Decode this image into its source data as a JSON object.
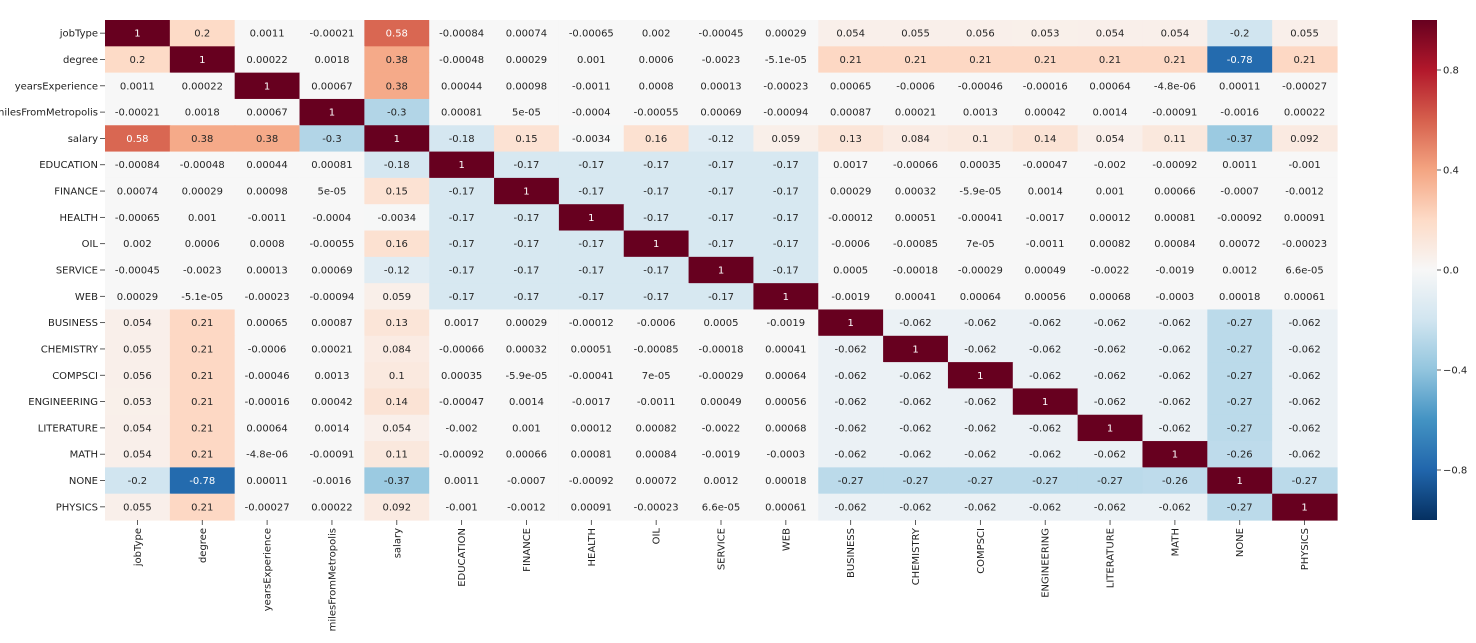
{
  "chart_data": {
    "type": "heatmap",
    "title": "",
    "xlabel": "",
    "ylabel": "",
    "labels": [
      "jobType",
      "degree",
      "yearsExperience",
      "milesFromMetropolis",
      "salary",
      "EDUCATION",
      "FINANCE",
      "HEALTH",
      "OIL",
      "SERVICE",
      "WEB",
      "BUSINESS",
      "CHEMISTRY",
      "COMPSCI",
      "ENGINEERING",
      "LITERATURE",
      "MATH",
      "NONE",
      "PHYSICS"
    ],
    "colormap": "RdBu_r",
    "vmin": -1,
    "vmax": 1,
    "colorbar": {
      "ticks": [
        0.8,
        0.4,
        0.0,
        -0.4,
        -0.8
      ],
      "tick_labels": [
        "0.8",
        "0.4",
        "0.0",
        "−0.4",
        "−0.8"
      ]
    },
    "value_labels": [
      [
        "1",
        "0.2",
        "0.0011",
        "-0.00021",
        "0.58",
        "-0.00084",
        "0.00074",
        "-0.00065",
        "0.002",
        "-0.00045",
        "0.00029",
        "0.054",
        "0.055",
        "0.056",
        "0.053",
        "0.054",
        "0.054",
        "-0.2",
        "0.055"
      ],
      [
        "0.2",
        "1",
        "0.00022",
        "0.0018",
        "0.38",
        "-0.00048",
        "0.00029",
        "0.001",
        "0.0006",
        "-0.0023",
        "-5.1e-05",
        "0.21",
        "0.21",
        "0.21",
        "0.21",
        "0.21",
        "0.21",
        "-0.78",
        "0.21"
      ],
      [
        "0.0011",
        "0.00022",
        "1",
        "0.00067",
        "0.38",
        "0.00044",
        "0.00098",
        "-0.0011",
        "0.0008",
        "0.00013",
        "-0.00023",
        "0.00065",
        "-0.0006",
        "-0.00046",
        "-0.00016",
        "0.00064",
        "-4.8e-06",
        "0.00011",
        "-0.00027"
      ],
      [
        "-0.00021",
        "0.0018",
        "0.00067",
        "1",
        "-0.3",
        "0.00081",
        "5e-05",
        "-0.0004",
        "-0.00055",
        "0.00069",
        "-0.00094",
        "0.00087",
        "0.00021",
        "0.0013",
        "0.00042",
        "0.0014",
        "-0.00091",
        "-0.0016",
        "0.00022"
      ],
      [
        "0.58",
        "0.38",
        "0.38",
        "-0.3",
        "1",
        "-0.18",
        "0.15",
        "-0.0034",
        "0.16",
        "-0.12",
        "0.059",
        "0.13",
        "0.084",
        "0.1",
        "0.14",
        "0.054",
        "0.11",
        "-0.37",
        "0.092"
      ],
      [
        "-0.00084",
        "-0.00048",
        "0.00044",
        "0.00081",
        "-0.18",
        "1",
        "-0.17",
        "-0.17",
        "-0.17",
        "-0.17",
        "-0.17",
        "0.0017",
        "-0.00066",
        "0.00035",
        "-0.00047",
        "-0.002",
        "-0.00092",
        "0.0011",
        "-0.001"
      ],
      [
        "0.00074",
        "0.00029",
        "0.00098",
        "5e-05",
        "0.15",
        "-0.17",
        "1",
        "-0.17",
        "-0.17",
        "-0.17",
        "-0.17",
        "0.00029",
        "0.00032",
        "-5.9e-05",
        "0.0014",
        "0.001",
        "0.00066",
        "-0.0007",
        "-0.0012"
      ],
      [
        "-0.00065",
        "0.001",
        "-0.0011",
        "-0.0004",
        "-0.0034",
        "-0.17",
        "-0.17",
        "1",
        "-0.17",
        "-0.17",
        "-0.17",
        "-0.00012",
        "0.00051",
        "-0.00041",
        "-0.0017",
        "0.00012",
        "0.00081",
        "-0.00092",
        "0.00091"
      ],
      [
        "0.002",
        "0.0006",
        "0.0008",
        "-0.00055",
        "0.16",
        "-0.17",
        "-0.17",
        "-0.17",
        "1",
        "-0.17",
        "-0.17",
        "-0.0006",
        "-0.00085",
        "7e-05",
        "-0.0011",
        "0.00082",
        "0.00084",
        "0.00072",
        "-0.00023"
      ],
      [
        "-0.00045",
        "-0.0023",
        "0.00013",
        "0.00069",
        "-0.12",
        "-0.17",
        "-0.17",
        "-0.17",
        "-0.17",
        "1",
        "-0.17",
        "0.0005",
        "-0.00018",
        "-0.00029",
        "0.00049",
        "-0.0022",
        "-0.0019",
        "0.0012",
        "6.6e-05"
      ],
      [
        "0.00029",
        "-5.1e-05",
        "-0.00023",
        "-0.00094",
        "0.059",
        "-0.17",
        "-0.17",
        "-0.17",
        "-0.17",
        "-0.17",
        "1",
        "-0.0019",
        "0.00041",
        "0.00064",
        "0.00056",
        "0.00068",
        "-0.0003",
        "0.00018",
        "0.00061"
      ],
      [
        "0.054",
        "0.21",
        "0.00065",
        "0.00087",
        "0.13",
        "0.0017",
        "0.00029",
        "-0.00012",
        "-0.0006",
        "0.0005",
        "-0.0019",
        "1",
        "-0.062",
        "-0.062",
        "-0.062",
        "-0.062",
        "-0.062",
        "-0.27",
        "-0.062"
      ],
      [
        "0.055",
        "0.21",
        "-0.0006",
        "0.00021",
        "0.084",
        "-0.00066",
        "0.00032",
        "0.00051",
        "-0.00085",
        "-0.00018",
        "0.00041",
        "-0.062",
        "1",
        "-0.062",
        "-0.062",
        "-0.062",
        "-0.062",
        "-0.27",
        "-0.062"
      ],
      [
        "0.056",
        "0.21",
        "-0.00046",
        "0.0013",
        "0.1",
        "0.00035",
        "-5.9e-05",
        "-0.00041",
        "7e-05",
        "-0.00029",
        "0.00064",
        "-0.062",
        "-0.062",
        "1",
        "-0.062",
        "-0.062",
        "-0.062",
        "-0.27",
        "-0.062"
      ],
      [
        "0.053",
        "0.21",
        "-0.00016",
        "0.00042",
        "0.14",
        "-0.00047",
        "0.0014",
        "-0.0017",
        "-0.0011",
        "0.00049",
        "0.00056",
        "-0.062",
        "-0.062",
        "-0.062",
        "1",
        "-0.062",
        "-0.062",
        "-0.27",
        "-0.062"
      ],
      [
        "0.054",
        "0.21",
        "0.00064",
        "0.0014",
        "0.054",
        "-0.002",
        "0.001",
        "0.00012",
        "0.00082",
        "-0.0022",
        "0.00068",
        "-0.062",
        "-0.062",
        "-0.062",
        "-0.062",
        "1",
        "-0.062",
        "-0.27",
        "-0.062"
      ],
      [
        "0.054",
        "0.21",
        "-4.8e-06",
        "-0.00091",
        "0.11",
        "-0.00092",
        "0.00066",
        "0.00081",
        "0.00084",
        "-0.0019",
        "-0.0003",
        "-0.062",
        "-0.062",
        "-0.062",
        "-0.062",
        "-0.062",
        "1",
        "-0.26",
        "-0.062"
      ],
      [
        "-0.2",
        "-0.78",
        "0.00011",
        "-0.0016",
        "-0.37",
        "0.0011",
        "-0.0007",
        "-0.00092",
        "0.00072",
        "0.0012",
        "0.00018",
        "-0.27",
        "-0.27",
        "-0.27",
        "-0.27",
        "-0.27",
        "-0.26",
        "1",
        "-0.27"
      ],
      [
        "0.055",
        "0.21",
        "-0.00027",
        "0.00022",
        "0.092",
        "-0.001",
        "-0.0012",
        "0.00091",
        "-0.00023",
        "6.6e-05",
        "0.00061",
        "-0.062",
        "-0.062",
        "-0.062",
        "-0.062",
        "-0.062",
        "-0.062",
        "-0.27",
        "1"
      ]
    ]
  }
}
